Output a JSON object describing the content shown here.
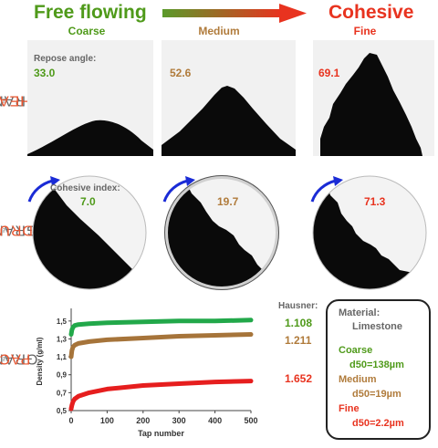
{
  "header": {
    "left_title": "Free flowing",
    "right_title": "Cohesive",
    "left_color": "#4f9a1a",
    "right_color": "#e8331f",
    "arrow_gradient": [
      "#5a9a2a",
      "#e8331f"
    ]
  },
  "columns": [
    {
      "label": "Coarse",
      "color": "#4f9a1a"
    },
    {
      "label": "Medium",
      "color": "#b07b3b"
    },
    {
      "label": "Fine",
      "color": "#e8331f"
    }
  ],
  "heap": {
    "brand_prefix": "GRANU",
    "brand_suffix": "HEAP",
    "caption": "Repose angle:",
    "values": [
      "33.0",
      "52.6",
      "69.1"
    ]
  },
  "drum": {
    "brand_prefix": "GRANU",
    "brand_suffix": "DRUM",
    "caption": "Cohesive index:",
    "values": [
      "7.0",
      "19.7",
      "71.3"
    ]
  },
  "pack": {
    "brand_prefix": "GRANU",
    "brand_suffix": "PACK",
    "hausner_label": "Hausner:",
    "hausner_values": [
      "1.108",
      "1.211",
      "1.652"
    ]
  },
  "chart_data": {
    "type": "line",
    "xlabel": "Tap number",
    "ylabel": "Density (g/ml)",
    "xlim": [
      0,
      500
    ],
    "ylim": [
      0.5,
      1.6
    ],
    "x_ticks": [
      "0",
      "100",
      "200",
      "300",
      "400",
      "500"
    ],
    "y_ticks": [
      "0,5",
      "0,7",
      "0,9",
      "1,1",
      "1,3",
      "1,5"
    ],
    "series": [
      {
        "color": "#22a84a",
        "x": [
          0,
          2,
          5,
          10,
          20,
          50,
          100,
          200,
          300,
          400,
          500
        ],
        "y": [
          1.35,
          1.4,
          1.43,
          1.45,
          1.46,
          1.47,
          1.48,
          1.49,
          1.5,
          1.5,
          1.51
        ]
      },
      {
        "color": "#a6743a",
        "x": [
          0,
          2,
          5,
          10,
          20,
          50,
          100,
          200,
          300,
          400,
          500
        ],
        "y": [
          1.1,
          1.17,
          1.21,
          1.23,
          1.25,
          1.27,
          1.29,
          1.31,
          1.33,
          1.34,
          1.35
        ]
      },
      {
        "color": "#e61e1e",
        "x": [
          0,
          2,
          5,
          10,
          20,
          50,
          100,
          200,
          300,
          400,
          500
        ],
        "y": [
          0.52,
          0.56,
          0.6,
          0.63,
          0.66,
          0.7,
          0.74,
          0.78,
          0.8,
          0.82,
          0.83
        ]
      }
    ]
  },
  "material": {
    "title": "Material:",
    "name": "Limestone",
    "coarse_label": "Coarse",
    "coarse_d50": "d50=138µm",
    "medium_label": "Medium",
    "medium_d50": "d50=19µm",
    "fine_label": "Fine",
    "fine_d50": "d50=2.2µm"
  }
}
